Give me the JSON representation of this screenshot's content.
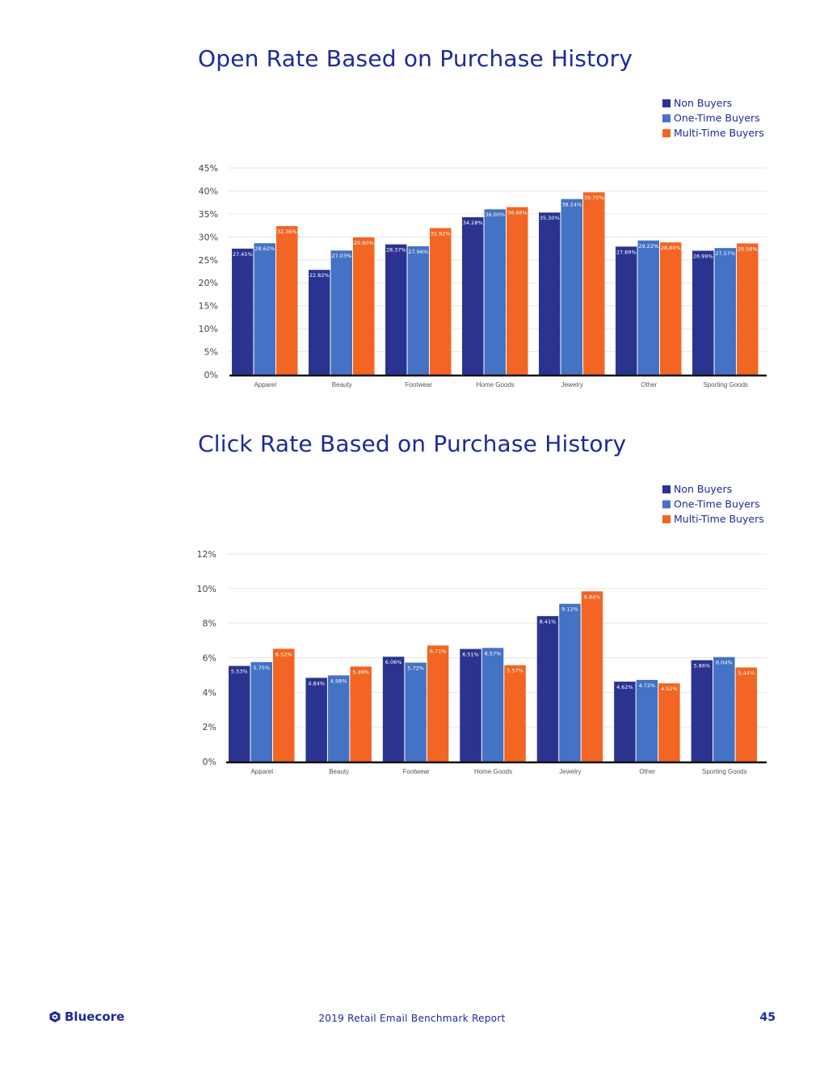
{
  "chart_data": [
    {
      "type": "bar",
      "title": "Open Rate Based on Purchase History",
      "categories": [
        "Apparel",
        "Beauty",
        "Footwear",
        "Home Goods",
        "Jewelry",
        "Other",
        "Sporting Goods"
      ],
      "series": [
        {
          "name": "Non Buyers",
          "color": "#2a3490",
          "values": [
            27.45,
            22.82,
            28.37,
            34.28,
            35.3,
            27.89,
            26.99
          ],
          "labels": [
            "27.45%",
            "22.82%",
            "28.37%",
            "34.28%",
            "35.30%",
            "27.89%",
            "26.99%"
          ]
        },
        {
          "name": "One-Time Buyers",
          "color": "#4472c4",
          "values": [
            28.62,
            27.03,
            27.96,
            36.0,
            38.24,
            29.22,
            27.57
          ],
          "labels": [
            "28.62%",
            "27.03%",
            "27.96%",
            "36.00%",
            "38.24%",
            "29.22%",
            "27.57%"
          ]
        },
        {
          "name": "Multi-Time Buyers",
          "color": "#f26522",
          "values": [
            32.36,
            29.9,
            31.92,
            36.48,
            39.7,
            28.8,
            28.58
          ],
          "labels": [
            "32.36%",
            "29.90%",
            "31.92%",
            "36.48%",
            "39.70%",
            "28.80%",
            "28.58%"
          ]
        }
      ],
      "ylim": [
        0,
        45
      ],
      "yticks": [
        "0%",
        "5%",
        "10%",
        "15%",
        "20%",
        "25%",
        "30%",
        "35%",
        "40%",
        "45%"
      ],
      "grid": true,
      "legend": "top-right"
    },
    {
      "type": "bar",
      "title": "Click Rate Based on Purchase History",
      "categories": [
        "Apparel",
        "Beauty",
        "Footwear",
        "Home Goods",
        "Jewelry",
        "Other",
        "Sporting Goods"
      ],
      "series": [
        {
          "name": "Non Buyers",
          "color": "#2a3490",
          "values": [
            5.53,
            4.84,
            6.06,
            6.51,
            8.41,
            4.62,
            5.86
          ],
          "labels": [
            "5.53%",
            "4.84%",
            "6.06%",
            "6.51%",
            "8.41%",
            "4.62%",
            "5.86%"
          ]
        },
        {
          "name": "One-Time Buyers",
          "color": "#4472c4",
          "values": [
            5.75,
            4.98,
            5.72,
            6.57,
            9.12,
            4.72,
            6.04
          ],
          "labels": [
            "5.75%",
            "4.98%",
            "5.72%",
            "6.57%",
            "9.12%",
            "4.72%",
            "6.04%"
          ]
        },
        {
          "name": "Multi-Time Buyers",
          "color": "#f26522",
          "values": [
            6.52,
            5.49,
            6.71,
            5.57,
            9.84,
            4.52,
            5.44
          ],
          "labels": [
            "6.52%",
            "5.49%",
            "6.71%",
            "5.57%",
            "9.84%",
            "4.52%",
            "5.44%"
          ]
        }
      ],
      "ylim": [
        0,
        12
      ],
      "yticks": [
        "0%",
        "2%",
        "4%",
        "6%",
        "8%",
        "10%",
        "12%"
      ],
      "grid": true,
      "legend": "top-right"
    }
  ],
  "footer": {
    "logo_text": "Bluecore",
    "report_name": "2019 Retail Email Benchmark Report",
    "page_number": "45"
  },
  "colors": {
    "title": "#1c2a9a",
    "non_buyers": "#2a3490",
    "one_time": "#4472c4",
    "multi_time": "#f26522"
  }
}
